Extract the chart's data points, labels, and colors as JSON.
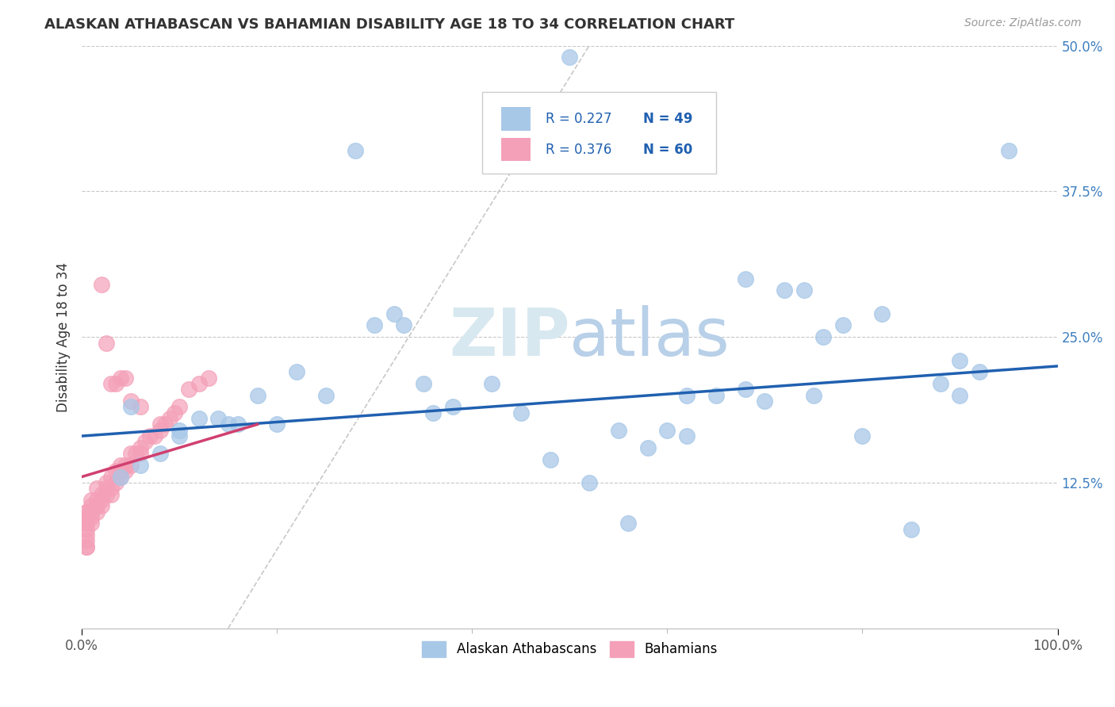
{
  "title": "ALASKAN ATHABASCAN VS BAHAMIAN DISABILITY AGE 18 TO 34 CORRELATION CHART",
  "source_text": "Source: ZipAtlas.com",
  "ylabel": "Disability Age 18 to 34",
  "xlim": [
    0.0,
    1.0
  ],
  "ylim": [
    0.0,
    0.5
  ],
  "ytick_values": [
    0.125,
    0.25,
    0.375,
    0.5
  ],
  "xtick_values": [
    0.0,
    1.0
  ],
  "xtick_labels": [
    "0.0%",
    "100.0%"
  ],
  "legend_r1": "R = 0.227",
  "legend_n1": "N = 49",
  "legend_r2": "R = 0.376",
  "legend_n2": "N = 60",
  "legend_label1": "Alaskan Athabascans",
  "legend_label2": "Bahamians",
  "color_blue": "#a8c8e8",
  "color_pink": "#f4a0b8",
  "color_trendline_blue": "#2060b0",
  "color_trendline_pink": "#d04070",
  "color_diagonal": "#c0c0c0",
  "color_legend_text": "#2060b0",
  "color_grid": "#c8c8c8",
  "color_ytick": "#4080c0",
  "watermark_color": "#d8e8f0",
  "blue_scatter_x": [
    0.28,
    0.5,
    0.32,
    0.3,
    0.42,
    0.35,
    0.55,
    0.62,
    0.72,
    0.74,
    0.78,
    0.76,
    0.82,
    0.88,
    0.9,
    0.92,
    0.68,
    0.6,
    0.38,
    0.22,
    0.18,
    0.12,
    0.05,
    0.08,
    0.1,
    0.14,
    0.16,
    0.06,
    0.04,
    0.45,
    0.48,
    0.52,
    0.56,
    0.65,
    0.7,
    0.75,
    0.8,
    0.85,
    0.95,
    0.58,
    0.36,
    0.25,
    0.2,
    0.15,
    0.1,
    0.33,
    0.62,
    0.68,
    0.9
  ],
  "blue_scatter_y": [
    0.41,
    0.49,
    0.27,
    0.26,
    0.21,
    0.21,
    0.17,
    0.165,
    0.29,
    0.29,
    0.26,
    0.25,
    0.27,
    0.21,
    0.2,
    0.22,
    0.3,
    0.17,
    0.19,
    0.22,
    0.2,
    0.18,
    0.19,
    0.15,
    0.165,
    0.18,
    0.175,
    0.14,
    0.13,
    0.185,
    0.145,
    0.125,
    0.09,
    0.2,
    0.195,
    0.2,
    0.165,
    0.085,
    0.41,
    0.155,
    0.185,
    0.2,
    0.175,
    0.175,
    0.17,
    0.26,
    0.2,
    0.205,
    0.23
  ],
  "pink_scatter_x": [
    0.005,
    0.005,
    0.005,
    0.005,
    0.005,
    0.005,
    0.005,
    0.005,
    0.005,
    0.005,
    0.01,
    0.01,
    0.01,
    0.01,
    0.01,
    0.015,
    0.015,
    0.015,
    0.015,
    0.02,
    0.02,
    0.02,
    0.025,
    0.025,
    0.025,
    0.03,
    0.03,
    0.03,
    0.035,
    0.035,
    0.04,
    0.04,
    0.04,
    0.045,
    0.045,
    0.05,
    0.05,
    0.055,
    0.06,
    0.06,
    0.065,
    0.07,
    0.075,
    0.08,
    0.08,
    0.085,
    0.09,
    0.095,
    0.1,
    0.11,
    0.12,
    0.13,
    0.02,
    0.025,
    0.03,
    0.04,
    0.05,
    0.06,
    0.045,
    0.035
  ],
  "pink_scatter_y": [
    0.07,
    0.07,
    0.075,
    0.08,
    0.085,
    0.09,
    0.09,
    0.095,
    0.1,
    0.1,
    0.09,
    0.095,
    0.1,
    0.105,
    0.11,
    0.1,
    0.105,
    0.11,
    0.12,
    0.105,
    0.11,
    0.115,
    0.115,
    0.12,
    0.125,
    0.115,
    0.12,
    0.13,
    0.125,
    0.135,
    0.13,
    0.135,
    0.14,
    0.135,
    0.14,
    0.14,
    0.15,
    0.15,
    0.15,
    0.155,
    0.16,
    0.165,
    0.165,
    0.17,
    0.175,
    0.175,
    0.18,
    0.185,
    0.19,
    0.205,
    0.21,
    0.215,
    0.295,
    0.245,
    0.21,
    0.215,
    0.195,
    0.19,
    0.215,
    0.21
  ]
}
